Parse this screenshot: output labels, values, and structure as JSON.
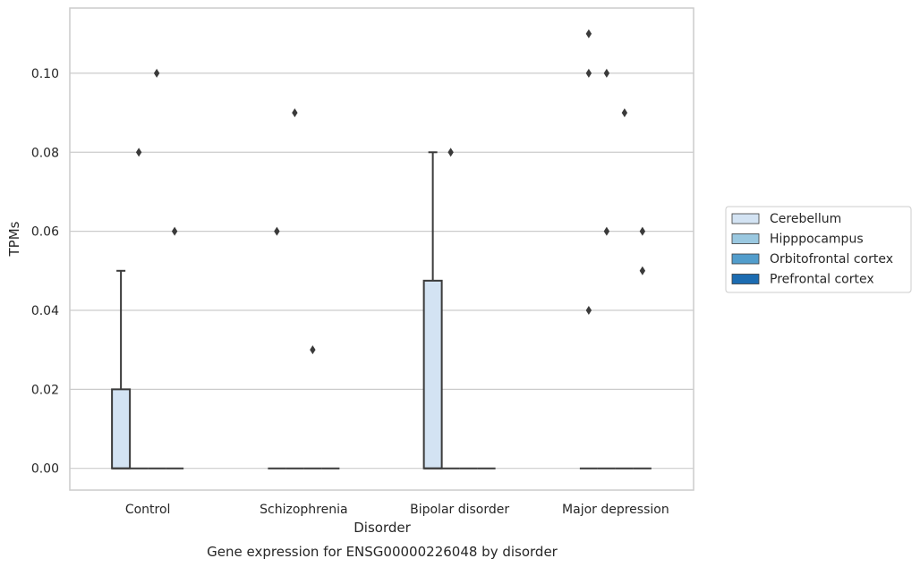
{
  "chart_data": {
    "type": "box",
    "caption": "Gene expression for ENSG00000226048 by disorder",
    "xlabel": "Disorder",
    "ylabel": "TPMs",
    "ylim": [
      -0.0055,
      0.1165
    ],
    "yticks": [
      0.0,
      0.02,
      0.04,
      0.06,
      0.08,
      0.1
    ],
    "ytick_labels": [
      "0.00",
      "0.02",
      "0.04",
      "0.06",
      "0.08",
      "0.10"
    ],
    "categories": [
      "Control",
      "Schizophrenia",
      "Bipolar disorder",
      "Major depression"
    ],
    "grid": true,
    "legend_placement": "right",
    "series": [
      {
        "name": "Cerebellum",
        "color": "#d3e3f3",
        "boxes": [
          {
            "q1": 0.0,
            "median": 0.0,
            "q3": 0.02,
            "whisker_low": 0.0,
            "whisker_high": 0.05,
            "outliers": []
          },
          {
            "q1": 0.0,
            "median": 0.0,
            "q3": 0.0,
            "whisker_low": 0.0,
            "whisker_high": 0.0,
            "outliers": [
              0.06
            ]
          },
          {
            "q1": 0.0,
            "median": 0.0,
            "q3": 0.0475,
            "whisker_low": 0.0,
            "whisker_high": 0.08,
            "outliers": []
          },
          {
            "q1": 0.0,
            "median": 0.0,
            "q3": 0.0,
            "whisker_low": 0.0,
            "whisker_high": 0.0,
            "outliers": [
              0.11,
              0.1,
              0.04
            ]
          }
        ]
      },
      {
        "name": "Hipppocampus",
        "color": "#9ac8e0",
        "boxes": [
          {
            "q1": 0.0,
            "median": 0.0,
            "q3": 0.0,
            "whisker_low": 0.0,
            "whisker_high": 0.0,
            "outliers": [
              0.08
            ]
          },
          {
            "q1": 0.0,
            "median": 0.0,
            "q3": 0.0,
            "whisker_low": 0.0,
            "whisker_high": 0.0,
            "outliers": [
              0.09
            ]
          },
          {
            "q1": 0.0,
            "median": 0.0,
            "q3": 0.0,
            "whisker_low": 0.0,
            "whisker_high": 0.0,
            "outliers": [
              0.08
            ]
          },
          {
            "q1": 0.0,
            "median": 0.0,
            "q3": 0.0,
            "whisker_low": 0.0,
            "whisker_high": 0.0,
            "outliers": [
              0.1,
              0.06
            ]
          }
        ]
      },
      {
        "name": "Orbitofrontal cortex",
        "color": "#529dcc",
        "boxes": [
          {
            "q1": 0.0,
            "median": 0.0,
            "q3": 0.0,
            "whisker_low": 0.0,
            "whisker_high": 0.0,
            "outliers": [
              0.1
            ]
          },
          {
            "q1": 0.0,
            "median": 0.0,
            "q3": 0.0,
            "whisker_low": 0.0,
            "whisker_high": 0.0,
            "outliers": [
              0.03
            ]
          },
          {
            "q1": 0.0,
            "median": 0.0,
            "q3": 0.0,
            "whisker_low": 0.0,
            "whisker_high": 0.0,
            "outliers": []
          },
          {
            "q1": 0.0,
            "median": 0.0,
            "q3": 0.0,
            "whisker_low": 0.0,
            "whisker_high": 0.0,
            "outliers": [
              0.09
            ]
          }
        ]
      },
      {
        "name": "Prefrontal cortex",
        "color": "#1c6cb1",
        "boxes": [
          {
            "q1": 0.0,
            "median": 0.0,
            "q3": 0.0,
            "whisker_low": 0.0,
            "whisker_high": 0.0,
            "outliers": [
              0.06
            ]
          },
          {
            "q1": 0.0,
            "median": 0.0,
            "q3": 0.0,
            "whisker_low": 0.0,
            "whisker_high": 0.0,
            "outliers": []
          },
          {
            "q1": 0.0,
            "median": 0.0,
            "q3": 0.0,
            "whisker_low": 0.0,
            "whisker_high": 0.0,
            "outliers": []
          },
          {
            "q1": 0.0,
            "median": 0.0,
            "q3": 0.0,
            "whisker_low": 0.0,
            "whisker_high": 0.0,
            "outliers": [
              0.06,
              0.05
            ]
          }
        ]
      }
    ]
  },
  "style": {
    "edge_color": "#3a3a3a",
    "grid_color": "#cccccc",
    "frame_color": "#cccccc"
  }
}
